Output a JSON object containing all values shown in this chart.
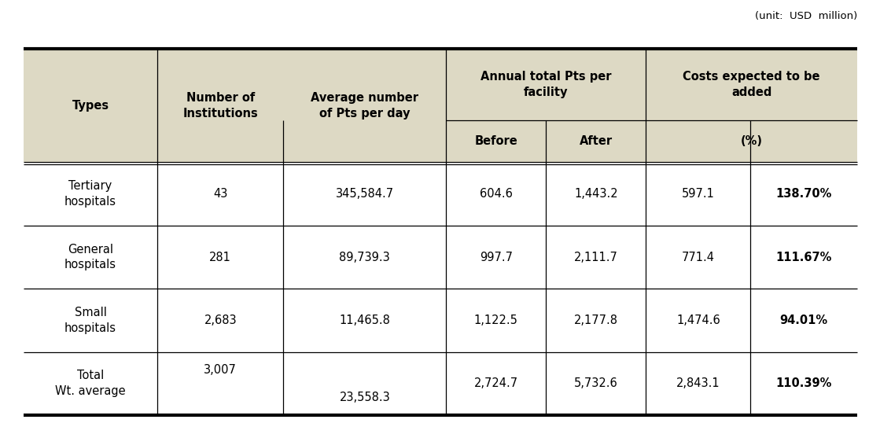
{
  "unit_label": "(unit:  USD  million)",
  "header_bg": "#ddd9c4",
  "white_bg": "#ffffff",
  "rows": [
    {
      "type": "Tertiary\nhospitals",
      "num_institutions": "43",
      "avg_pts_per_day": "345,584.7",
      "before": "604.6",
      "after": "1,443.2",
      "cost_usd": "597.1",
      "cost_pct": "138.70%"
    },
    {
      "type": "General\nhospitals",
      "num_institutions": "281",
      "avg_pts_per_day": "89,739.3",
      "before": "997.7",
      "after": "2,111.7",
      "cost_usd": "771.4",
      "cost_pct": "111.67%"
    },
    {
      "type": "Small\nhospitals",
      "num_institutions": "2,683",
      "avg_pts_per_day": "11,465.8",
      "before": "1,122.5",
      "after": "2,177.8",
      "cost_usd": "1,474.6",
      "cost_pct": "94.01%"
    },
    {
      "type": "Total\nWt. average",
      "num_institutions": "3,007",
      "avg_pts_per_day": "23,558.3",
      "before": "2,724.7",
      "after": "5,732.6",
      "cost_usd": "2,843.1",
      "cost_pct": "110.39%"
    }
  ],
  "fig_width": 11.05,
  "fig_height": 5.38,
  "dpi": 100
}
